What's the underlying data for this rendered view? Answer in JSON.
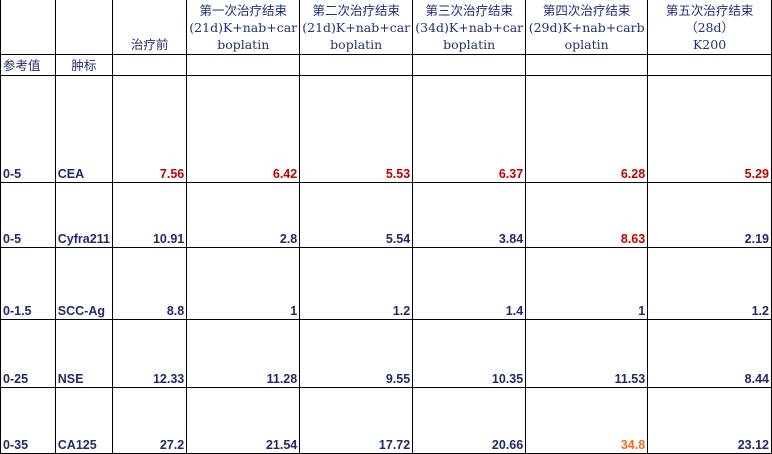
{
  "header": {
    "ref_label": "参考值",
    "marker_label": "肿标",
    "columns": [
      {
        "line1": "",
        "line2": "",
        "line3": "治疗前"
      },
      {
        "line1": "第一次治疗结束",
        "line2": "(21d)K+nab+car",
        "line3": "boplatin"
      },
      {
        "line1": "第二次治疗结束",
        "line2": "(21d)K+nab+car",
        "line3": "boplatin"
      },
      {
        "line1": "第三次治疗结束",
        "line2": "(34d)K+nab+car",
        "line3": "boplatin"
      },
      {
        "line1": "第四次治疗结束",
        "line2": "(29d)K+nab+carb",
        "line3": "oplatin"
      },
      {
        "line1": "第五次治疗结束",
        "line2": "（28d）",
        "line3": "K200"
      }
    ]
  },
  "colors": {
    "normal": "#1f2a6b",
    "high": "#c00000",
    "highlight": "#f07020"
  },
  "rows": [
    {
      "ref": "0-5",
      "marker": "CEA",
      "values": [
        "7.56",
        "6.42",
        "5.53",
        "6.37",
        "6.28",
        "5.29"
      ],
      "flags": [
        "red",
        "red",
        "red",
        "red",
        "red",
        "red"
      ]
    },
    {
      "ref": "0-5",
      "marker": "Cyfra211",
      "values": [
        "10.91",
        "2.8",
        "5.54",
        "3.84",
        "8.63",
        "2.19"
      ],
      "flags": [
        "",
        "",
        "",
        "",
        "red",
        ""
      ]
    },
    {
      "ref": "0-1.5",
      "marker": "SCC-Ag",
      "values": [
        "8.8",
        "1",
        "1.2",
        "1.4",
        "1",
        "1.2"
      ],
      "flags": [
        "",
        "",
        "",
        "",
        "",
        ""
      ]
    },
    {
      "ref": "0-25",
      "marker": "NSE",
      "values": [
        "12.33",
        "11.28",
        "9.55",
        "10.35",
        "11.53",
        "8.44"
      ],
      "flags": [
        "",
        "",
        "",
        "",
        "",
        ""
      ]
    },
    {
      "ref": "0-35",
      "marker": "CA125",
      "values": [
        "27.2",
        "21.54",
        "17.72",
        "20.66",
        "34.8",
        "23.12"
      ],
      "flags": [
        "",
        "",
        "",
        "",
        "orange",
        ""
      ]
    }
  ]
}
